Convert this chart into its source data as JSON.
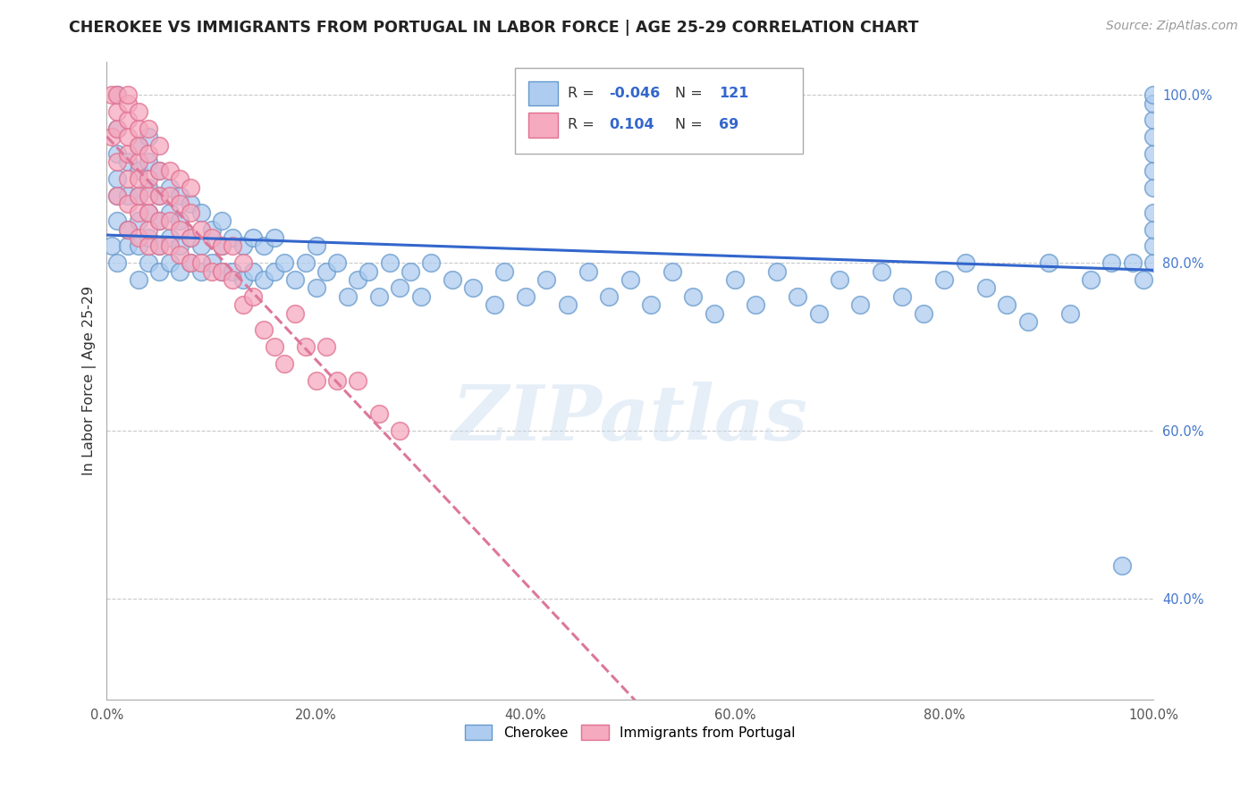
{
  "title": "CHEROKEE VS IMMIGRANTS FROM PORTUGAL IN LABOR FORCE | AGE 25-29 CORRELATION CHART",
  "source": "Source: ZipAtlas.com",
  "ylabel": "In Labor Force | Age 25-29",
  "xlim": [
    0,
    1
  ],
  "ylim": [
    0.28,
    1.04
  ],
  "xticks": [
    0.0,
    0.1,
    0.2,
    0.3,
    0.4,
    0.5,
    0.6,
    0.7,
    0.8,
    0.9,
    1.0
  ],
  "yticks": [
    0.4,
    0.6,
    0.8,
    1.0
  ],
  "xtick_labels": [
    "0.0%",
    "",
    "20.0%",
    "",
    "40.0%",
    "",
    "60.0%",
    "",
    "80.0%",
    "",
    "100.0%"
  ],
  "ytick_labels": [
    "40.0%",
    "60.0%",
    "80.0%",
    "100.0%"
  ],
  "cherokee_color": "#aeccf0",
  "portugal_color": "#f5aabf",
  "cherokee_edge": "#6699cc",
  "portugal_edge": "#e07090",
  "trend_blue": "#3366cc",
  "trend_pink": "#dd7799",
  "R_cherokee": -0.046,
  "N_cherokee": 121,
  "R_portugal": 0.104,
  "N_portugal": 69,
  "watermark": "ZIPatlas",
  "background": "#ffffff",
  "grid_color": "#bbbbbb",
  "cherokee_x": [
    0.005,
    0.01,
    0.01,
    0.01,
    0.01,
    0.01,
    0.01,
    0.01,
    0.02,
    0.02,
    0.02,
    0.02,
    0.03,
    0.03,
    0.03,
    0.03,
    0.03,
    0.03,
    0.04,
    0.04,
    0.04,
    0.04,
    0.04,
    0.04,
    0.05,
    0.05,
    0.05,
    0.05,
    0.05,
    0.06,
    0.06,
    0.06,
    0.06,
    0.07,
    0.07,
    0.07,
    0.07,
    0.08,
    0.08,
    0.08,
    0.09,
    0.09,
    0.09,
    0.1,
    0.1,
    0.11,
    0.11,
    0.11,
    0.12,
    0.12,
    0.13,
    0.13,
    0.14,
    0.14,
    0.15,
    0.15,
    0.16,
    0.16,
    0.17,
    0.18,
    0.19,
    0.2,
    0.2,
    0.21,
    0.22,
    0.23,
    0.24,
    0.25,
    0.26,
    0.27,
    0.28,
    0.29,
    0.3,
    0.31,
    0.33,
    0.35,
    0.37,
    0.38,
    0.4,
    0.42,
    0.44,
    0.46,
    0.48,
    0.5,
    0.52,
    0.54,
    0.56,
    0.58,
    0.6,
    0.62,
    0.64,
    0.66,
    0.68,
    0.7,
    0.72,
    0.74,
    0.76,
    0.78,
    0.8,
    0.82,
    0.84,
    0.86,
    0.88,
    0.9,
    0.92,
    0.94,
    0.96,
    0.97,
    0.98,
    0.99,
    1.0,
    1.0,
    1.0,
    1.0,
    1.0,
    1.0,
    1.0,
    1.0,
    1.0,
    1.0,
    1.0
  ],
  "cherokee_y": [
    0.82,
    0.8,
    0.85,
    0.88,
    0.9,
    0.93,
    0.96,
    1.0,
    0.82,
    0.84,
    0.88,
    0.92,
    0.78,
    0.82,
    0.85,
    0.88,
    0.91,
    0.94,
    0.8,
    0.83,
    0.86,
    0.89,
    0.92,
    0.95,
    0.79,
    0.82,
    0.85,
    0.88,
    0.91,
    0.8,
    0.83,
    0.86,
    0.89,
    0.79,
    0.82,
    0.85,
    0.88,
    0.8,
    0.83,
    0.87,
    0.79,
    0.82,
    0.86,
    0.8,
    0.84,
    0.79,
    0.82,
    0.85,
    0.79,
    0.83,
    0.78,
    0.82,
    0.79,
    0.83,
    0.78,
    0.82,
    0.79,
    0.83,
    0.8,
    0.78,
    0.8,
    0.77,
    0.82,
    0.79,
    0.8,
    0.76,
    0.78,
    0.79,
    0.76,
    0.8,
    0.77,
    0.79,
    0.76,
    0.8,
    0.78,
    0.77,
    0.75,
    0.79,
    0.76,
    0.78,
    0.75,
    0.79,
    0.76,
    0.78,
    0.75,
    0.79,
    0.76,
    0.74,
    0.78,
    0.75,
    0.79,
    0.76,
    0.74,
    0.78,
    0.75,
    0.79,
    0.76,
    0.74,
    0.78,
    0.8,
    0.77,
    0.75,
    0.73,
    0.8,
    0.74,
    0.78,
    0.8,
    0.44,
    0.8,
    0.78,
    0.8,
    0.82,
    0.84,
    0.86,
    0.89,
    0.91,
    0.93,
    0.95,
    0.97,
    0.99,
    1.0
  ],
  "portugal_x": [
    0.005,
    0.005,
    0.01,
    0.01,
    0.01,
    0.01,
    0.01,
    0.02,
    0.02,
    0.02,
    0.02,
    0.02,
    0.02,
    0.02,
    0.02,
    0.03,
    0.03,
    0.03,
    0.03,
    0.03,
    0.03,
    0.03,
    0.03,
    0.04,
    0.04,
    0.04,
    0.04,
    0.04,
    0.04,
    0.04,
    0.05,
    0.05,
    0.05,
    0.05,
    0.05,
    0.06,
    0.06,
    0.06,
    0.06,
    0.07,
    0.07,
    0.07,
    0.07,
    0.08,
    0.08,
    0.08,
    0.08,
    0.09,
    0.09,
    0.1,
    0.1,
    0.11,
    0.11,
    0.12,
    0.12,
    0.13,
    0.13,
    0.14,
    0.15,
    0.16,
    0.17,
    0.18,
    0.19,
    0.2,
    0.21,
    0.22,
    0.24,
    0.26,
    0.28
  ],
  "portugal_y": [
    0.95,
    1.0,
    0.88,
    0.92,
    0.96,
    0.98,
    1.0,
    0.84,
    0.87,
    0.9,
    0.93,
    0.95,
    0.97,
    0.99,
    1.0,
    0.83,
    0.86,
    0.88,
    0.9,
    0.92,
    0.94,
    0.96,
    0.98,
    0.82,
    0.84,
    0.86,
    0.88,
    0.9,
    0.93,
    0.96,
    0.82,
    0.85,
    0.88,
    0.91,
    0.94,
    0.82,
    0.85,
    0.88,
    0.91,
    0.81,
    0.84,
    0.87,
    0.9,
    0.8,
    0.83,
    0.86,
    0.89,
    0.8,
    0.84,
    0.79,
    0.83,
    0.79,
    0.82,
    0.78,
    0.82,
    0.75,
    0.8,
    0.76,
    0.72,
    0.7,
    0.68,
    0.74,
    0.7,
    0.66,
    0.7,
    0.66,
    0.66,
    0.62,
    0.6
  ]
}
